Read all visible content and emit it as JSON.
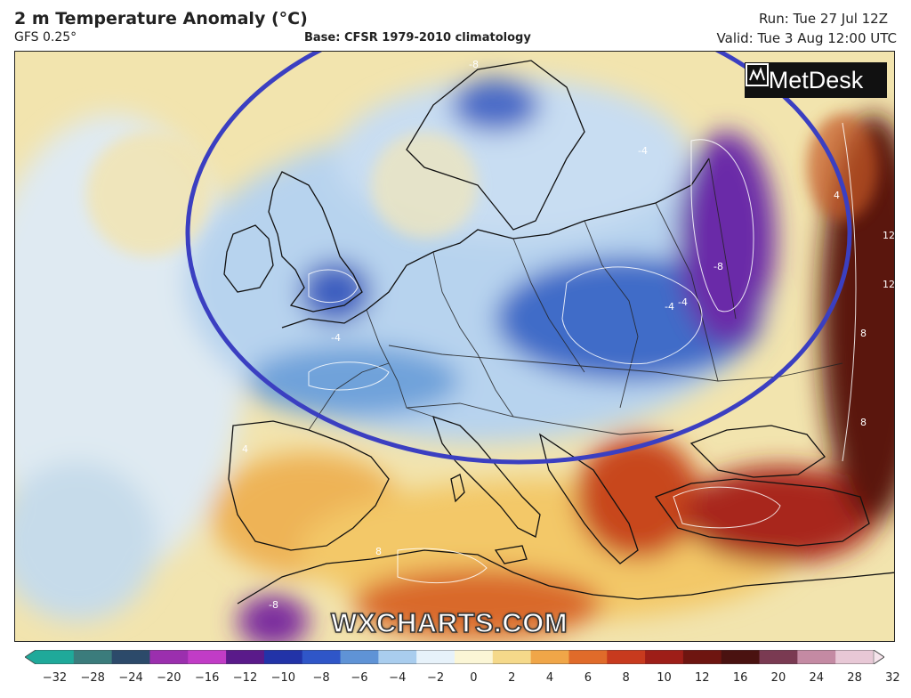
{
  "header": {
    "title": "2 m Temperature Anomaly (°C)",
    "model": "GFS 0.25°",
    "climatology": "Base: CFSR 1979-2010 climatology",
    "run": "Run: Tue 27 Jul 12Z",
    "valid": "Valid: Tue 3 Aug 12:00 UTC"
  },
  "branding": {
    "logo_text": "MetDesk",
    "watermark": "WXCHARTS.COM"
  },
  "map": {
    "region": "Europe",
    "highlight_ellipse_color": "#3b3fc1",
    "contour_labels": [
      "-8",
      "-4",
      "-4",
      "-4",
      "-8",
      "-4",
      "4",
      "8",
      "8",
      "12",
      "12",
      "4",
      "8",
      "-8"
    ]
  },
  "legend": {
    "ticks": [
      "−32",
      "−28",
      "−24",
      "−20",
      "−16",
      "−12",
      "−10",
      "−8",
      "−6",
      "−4",
      "−2",
      "0",
      "2",
      "4",
      "6",
      "8",
      "10",
      "12",
      "16",
      "20",
      "24",
      "28",
      "32"
    ],
    "colors": [
      "#1fa99a",
      "#3b7c7c",
      "#2c4a6a",
      "#9b2fae",
      "#c13cc6",
      "#5a1a8a",
      "#2233a8",
      "#2f56c8",
      "#5f93d6",
      "#a9cdee",
      "#e7f2fa",
      "#fbf6d6",
      "#f5d98a",
      "#f0a648",
      "#e06b2a",
      "#c83a1e",
      "#9e1e18",
      "#6e1510",
      "#4a1210",
      "#7a3a52",
      "#c48aa3",
      "#e8c8d6"
    ]
  }
}
